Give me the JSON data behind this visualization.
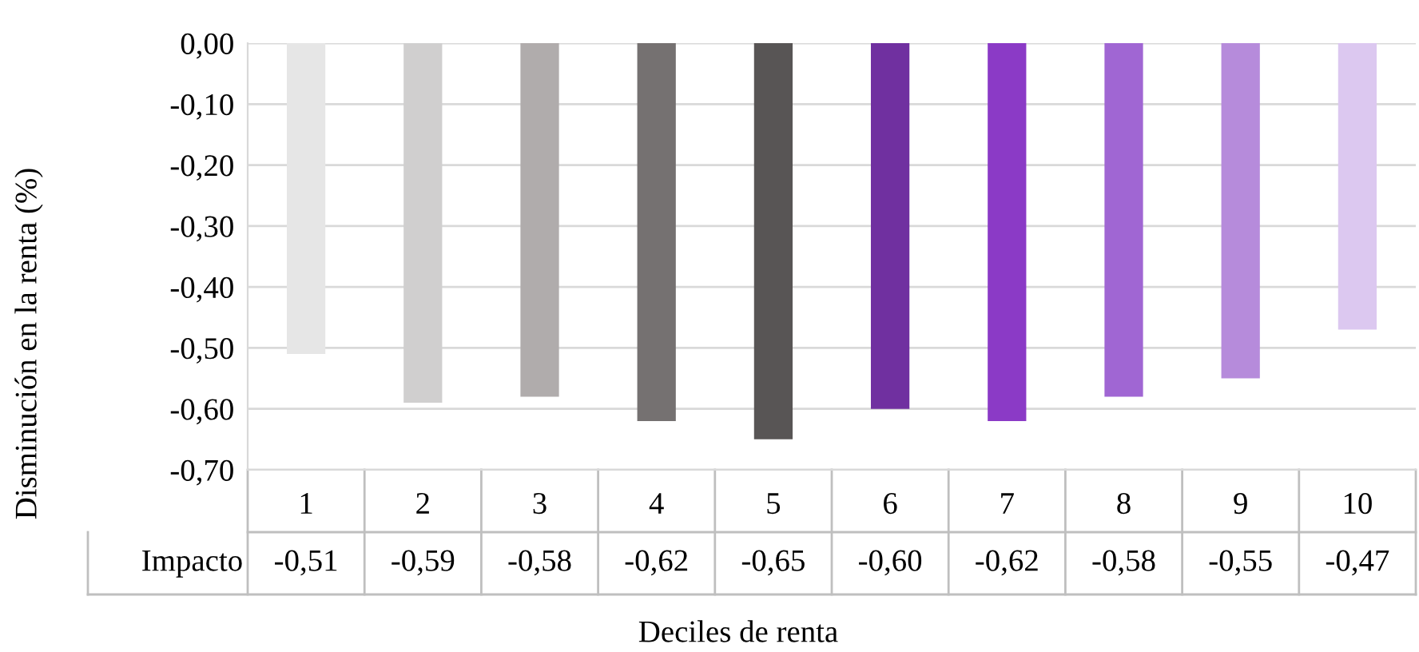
{
  "chart_data": {
    "type": "bar",
    "xlabel": "Deciles de renta",
    "ylabel": "Disminución en la renta (%)",
    "categories": [
      "1",
      "2",
      "3",
      "4",
      "5",
      "6",
      "7",
      "8",
      "9",
      "10"
    ],
    "series": [
      {
        "name": "Impacto",
        "colors": [
          "#e6e6e6",
          "#d0cfcf",
          "#b0acac",
          "#757171",
          "#585555",
          "#7030a0",
          "#8b3ac6",
          "#a066d3",
          "#b68bdb",
          "#dcc8f0"
        ],
        "values": [
          -0.51,
          -0.59,
          -0.58,
          -0.62,
          -0.65,
          -0.6,
          -0.62,
          -0.58,
          -0.55,
          -0.47
        ],
        "value_labels": [
          "-0,51",
          "-0,59",
          "-0,58",
          "-0,62",
          "-0,65",
          "-0,60",
          "-0,62",
          "-0,58",
          "-0,55",
          "-0,47"
        ]
      }
    ],
    "ylim": [
      -0.7,
      0
    ],
    "yticks": [
      {
        "value": 0,
        "label": "0,00"
      },
      {
        "value": -0.1,
        "label": "-0,10"
      },
      {
        "value": -0.2,
        "label": "-0,20"
      },
      {
        "value": -0.3,
        "label": "-0,30"
      },
      {
        "value": -0.4,
        "label": "-0,40"
      },
      {
        "value": -0.5,
        "label": "-0,50"
      },
      {
        "value": -0.6,
        "label": "-0,60"
      },
      {
        "value": -0.7,
        "label": "-0,70"
      }
    ],
    "grid": "y",
    "legend": false
  }
}
